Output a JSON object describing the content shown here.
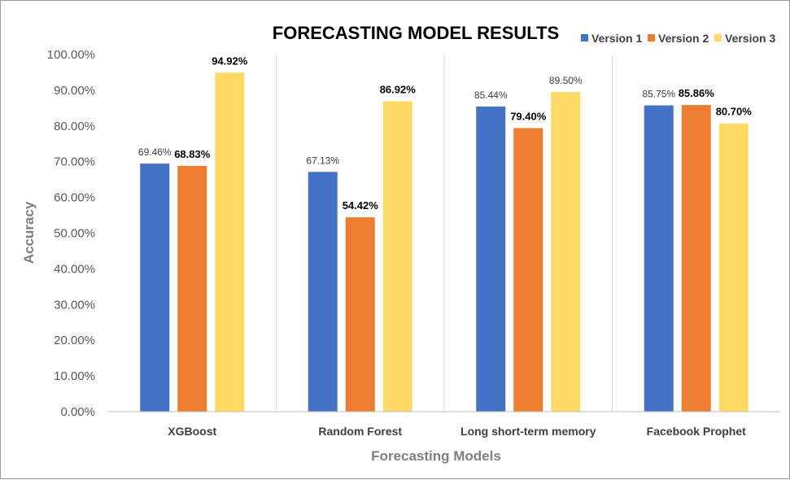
{
  "chart_data": {
    "type": "bar",
    "title": "FORECASTING MODEL RESULTS",
    "xlabel": "Forecasting Models",
    "ylabel": "Accuracy",
    "categories": [
      "XGBoost",
      "Random Forest",
      "Long short-term memory",
      "Facebook Prophet"
    ],
    "series": [
      {
        "name": "Version 1",
        "color": "#4472C4",
        "values": [
          69.46,
          67.13,
          85.44,
          85.75
        ],
        "labels": [
          "69.46%",
          "67.13%",
          "85.44%",
          "85.75%"
        ],
        "label_bold": [
          false,
          false,
          false,
          false
        ]
      },
      {
        "name": "Version 2",
        "color": "#ED7D31",
        "values": [
          68.83,
          54.42,
          79.4,
          85.86
        ],
        "labels": [
          "68.83%",
          "54.42%",
          "79.40%",
          "85.86%"
        ],
        "label_bold": [
          true,
          true,
          true,
          true
        ]
      },
      {
        "name": "Version 3",
        "color": "#FFD966",
        "values": [
          94.92,
          86.92,
          89.5,
          80.7
        ],
        "labels": [
          "94.92%",
          "86.92%",
          "89.50%",
          "80.70%"
        ],
        "label_bold": [
          true,
          true,
          false,
          true
        ]
      }
    ],
    "ylim": [
      0,
      100
    ],
    "yticks": [
      0,
      10,
      20,
      30,
      40,
      50,
      60,
      70,
      80,
      90,
      100
    ],
    "ytick_labels": [
      "0.00%",
      "10.00%",
      "20.00%",
      "30.00%",
      "40.00%",
      "50.00%",
      "60.00%",
      "70.00%",
      "80.00%",
      "90.00%",
      "100.00%"
    ],
    "legend_position": "top-right",
    "grid": false,
    "category_separators": true
  }
}
